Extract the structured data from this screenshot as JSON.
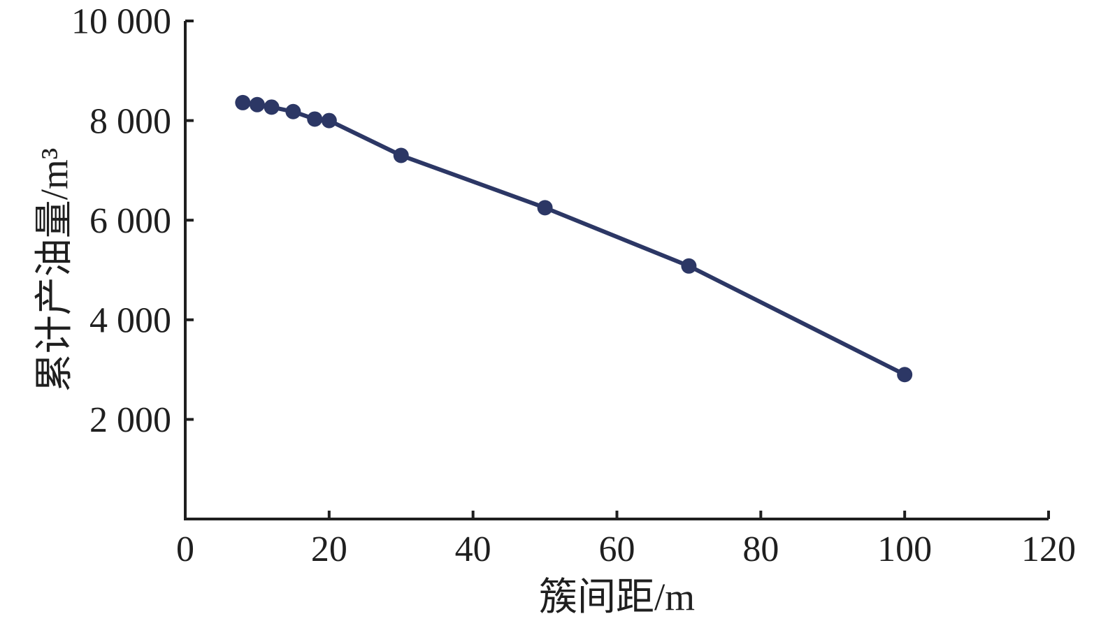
{
  "chart_data": {
    "type": "line",
    "title": "",
    "xlabel": "簇间距/m",
    "ylabel": "累计产油量/m³",
    "xlim": [
      0,
      120
    ],
    "ylim": [
      0,
      10000
    ],
    "grid": false,
    "legend": "none",
    "axis_color": "#1f1f1f",
    "x_ticks": [
      {
        "value": 0,
        "label": "0"
      },
      {
        "value": 20,
        "label": "20"
      },
      {
        "value": 40,
        "label": "40"
      },
      {
        "value": 60,
        "label": "60"
      },
      {
        "value": 80,
        "label": "80"
      },
      {
        "value": 100,
        "label": "100"
      },
      {
        "value": 120,
        "label": "120"
      }
    ],
    "y_ticks": [
      {
        "value": 2000,
        "label": "2 000"
      },
      {
        "value": 4000,
        "label": "4 000"
      },
      {
        "value": 6000,
        "label": "6 000"
      },
      {
        "value": 8000,
        "label": "8 000"
      },
      {
        "value": 10000,
        "label": "10 000"
      }
    ],
    "series": [
      {
        "name": "cumulative-oil-production",
        "color": "#2c3765",
        "marker": "circle",
        "x": [
          8,
          10,
          12,
          15,
          18,
          20,
          30,
          50,
          70,
          100
        ],
        "y": [
          8360,
          8320,
          8270,
          8180,
          8030,
          8000,
          7300,
          6250,
          5080,
          2900
        ]
      }
    ]
  }
}
